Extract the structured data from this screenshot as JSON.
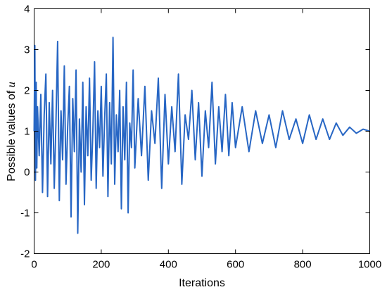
{
  "chart_data": {
    "type": "line",
    "title": "",
    "xlabel": "Iterations",
    "ylabel_text": "Possible values of ",
    "ylabel_var": "u",
    "xlim": [
      0,
      1000
    ],
    "ylim": [
      -2,
      4
    ],
    "x_ticks": [
      0,
      200,
      400,
      600,
      800,
      1000
    ],
    "y_ticks": [
      -2,
      -1,
      0,
      1,
      2,
      3,
      4
    ],
    "grid": false,
    "legend": "none",
    "colors": {
      "series": "#2766c4",
      "axis": "#000000"
    },
    "series": [
      {
        "description_only_in_script": false,
        "x": [
          0,
          2,
          4,
          6,
          8,
          10,
          15,
          20,
          25,
          30,
          35,
          40,
          45,
          50,
          55,
          60,
          65,
          70,
          75,
          80,
          85,
          90,
          95,
          100,
          105,
          110,
          115,
          120,
          125,
          130,
          135,
          140,
          145,
          150,
          155,
          160,
          165,
          170,
          175,
          180,
          185,
          190,
          195,
          200,
          205,
          210,
          215,
          220,
          225,
          230,
          235,
          240,
          245,
          250,
          255,
          260,
          265,
          270,
          275,
          280,
          285,
          290,
          295,
          300,
          310,
          320,
          330,
          340,
          350,
          360,
          370,
          380,
          390,
          400,
          410,
          420,
          430,
          440,
          450,
          460,
          470,
          480,
          490,
          500,
          510,
          520,
          530,
          540,
          550,
          560,
          570,
          580,
          590,
          600,
          620,
          640,
          660,
          680,
          700,
          720,
          740,
          760,
          780,
          800,
          820,
          840,
          860,
          880,
          900,
          920,
          940,
          960,
          980,
          1000
        ],
        "y": [
          1.0,
          3.1,
          -0.2,
          2.2,
          0.1,
          1.6,
          0.4,
          1.9,
          -0.5,
          1.4,
          2.4,
          -0.6,
          1.7,
          0.2,
          2.0,
          -0.4,
          1.2,
          3.2,
          -0.7,
          1.5,
          0.3,
          2.6,
          -0.3,
          1.1,
          2.1,
          -1.1,
          1.8,
          0.5,
          2.5,
          -1.5,
          1.3,
          0.0,
          2.2,
          -0.8,
          1.6,
          0.4,
          2.3,
          -0.2,
          1.0,
          2.7,
          -0.4,
          1.5,
          0.6,
          2.1,
          -0.1,
          1.3,
          2.4,
          -0.6,
          1.7,
          0.2,
          3.3,
          -0.3,
          1.4,
          0.5,
          2.0,
          -0.9,
          1.6,
          0.3,
          2.2,
          -1.0,
          1.2,
          0.6,
          2.5,
          0.1,
          1.8,
          0.4,
          2.1,
          -0.2,
          1.5,
          0.7,
          2.3,
          -0.4,
          1.9,
          0.2,
          1.6,
          0.5,
          2.4,
          -0.3,
          1.4,
          0.8,
          2.0,
          0.3,
          1.7,
          -0.1,
          1.5,
          0.6,
          2.2,
          0.2,
          1.6,
          0.5,
          1.9,
          0.4,
          1.7,
          0.6,
          1.6,
          0.5,
          1.5,
          0.7,
          1.4,
          0.6,
          1.5,
          0.8,
          1.3,
          0.7,
          1.4,
          0.8,
          1.3,
          0.8,
          1.2,
          0.9,
          1.1,
          0.95,
          1.05,
          1.0
        ]
      }
    ]
  }
}
